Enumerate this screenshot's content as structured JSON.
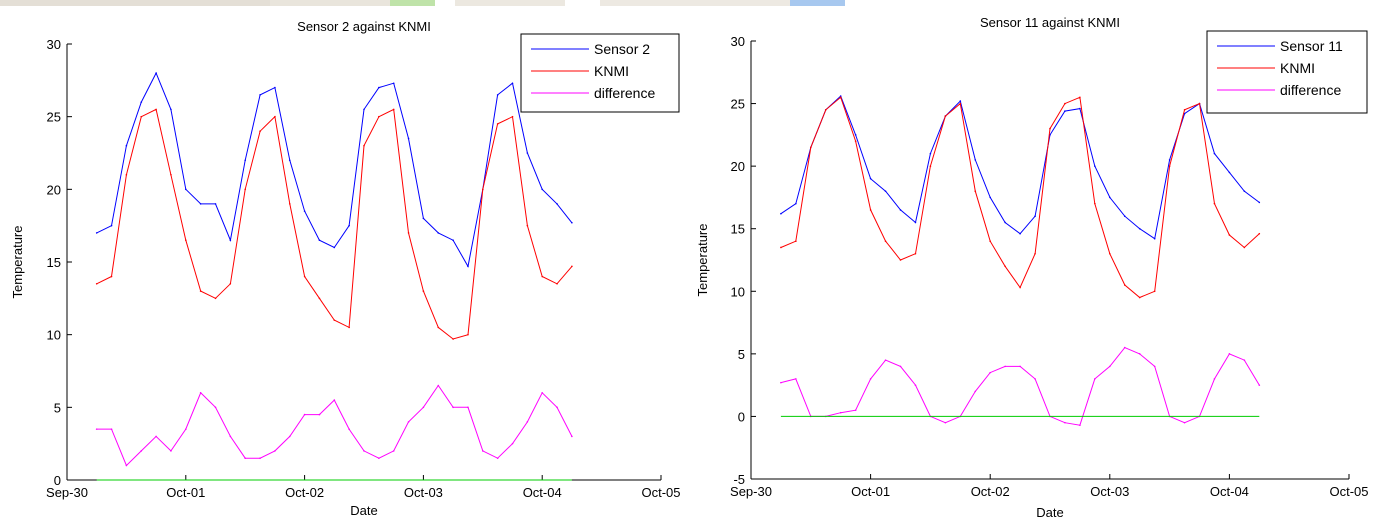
{
  "chart_data": [
    {
      "type": "line",
      "title": "Sensor 2 against KNMI",
      "xlabel": "Date",
      "ylabel": "Temperature",
      "xlim": [
        "2014-09-30 00:00",
        "2014-10-05 00:00"
      ],
      "ylim": [
        0,
        30
      ],
      "xticks": [
        "Sep-30",
        "Oct-01",
        "Oct-02",
        "Oct-03",
        "Oct-04",
        "Oct-05"
      ],
      "yticks": [
        0,
        5,
        10,
        15,
        20,
        25,
        30
      ],
      "legend_position": "top-right",
      "grid": false,
      "series": [
        {
          "name": "Sensor 2",
          "color": "#0000ff",
          "x": [
            "2014-09-30 06:00",
            "2014-09-30 09:00",
            "2014-09-30 12:00",
            "2014-09-30 15:00",
            "2014-09-30 18:00",
            "2014-09-30 21:00",
            "2014-10-01 00:00",
            "2014-10-01 03:00",
            "2014-10-01 06:00",
            "2014-10-01 09:00",
            "2014-10-01 12:00",
            "2014-10-01 15:00",
            "2014-10-01 18:00",
            "2014-10-01 21:00",
            "2014-10-02 00:00",
            "2014-10-02 03:00",
            "2014-10-02 06:00",
            "2014-10-02 09:00",
            "2014-10-02 12:00",
            "2014-10-02 15:00",
            "2014-10-02 18:00",
            "2014-10-02 21:00",
            "2014-10-03 00:00",
            "2014-10-03 03:00",
            "2014-10-03 06:00",
            "2014-10-03 09:00",
            "2014-10-03 12:00",
            "2014-10-03 15:00",
            "2014-10-03 18:00",
            "2014-10-03 21:00",
            "2014-10-04 00:00",
            "2014-10-04 03:00",
            "2014-10-04 06:00"
          ],
          "y": [
            17,
            17.5,
            23,
            26,
            28,
            25.5,
            20,
            19,
            19,
            16.5,
            22,
            26.5,
            27,
            22,
            18.5,
            16.5,
            16,
            17.5,
            25.5,
            27,
            27.3,
            23.5,
            18,
            17,
            16.5,
            14.7,
            20,
            26.5,
            27.3,
            22.5,
            20,
            19,
            17.7
          ]
        },
        {
          "name": "KNMI",
          "color": "#ff0000",
          "x": [
            "2014-09-30 06:00",
            "2014-09-30 09:00",
            "2014-09-30 12:00",
            "2014-09-30 15:00",
            "2014-09-30 18:00",
            "2014-09-30 21:00",
            "2014-10-01 00:00",
            "2014-10-01 03:00",
            "2014-10-01 06:00",
            "2014-10-01 09:00",
            "2014-10-01 12:00",
            "2014-10-01 15:00",
            "2014-10-01 18:00",
            "2014-10-01 21:00",
            "2014-10-02 00:00",
            "2014-10-02 03:00",
            "2014-10-02 06:00",
            "2014-10-02 09:00",
            "2014-10-02 12:00",
            "2014-10-02 15:00",
            "2014-10-02 18:00",
            "2014-10-02 21:00",
            "2014-10-03 00:00",
            "2014-10-03 03:00",
            "2014-10-03 06:00",
            "2014-10-03 09:00",
            "2014-10-03 12:00",
            "2014-10-03 15:00",
            "2014-10-03 18:00",
            "2014-10-03 21:00",
            "2014-10-04 00:00",
            "2014-10-04 03:00",
            "2014-10-04 06:00"
          ],
          "y": [
            13.5,
            14,
            21,
            25,
            25.5,
            21,
            16.5,
            13,
            12.5,
            13.5,
            20,
            24,
            25,
            19,
            14,
            12.5,
            11,
            10.5,
            23,
            25,
            25.5,
            17,
            13,
            10.5,
            9.7,
            10,
            20,
            24.5,
            25,
            17.5,
            14,
            13.5,
            14.7
          ]
        },
        {
          "name": "difference",
          "color": "#ff00ff",
          "x": [
            "2014-09-30 06:00",
            "2014-09-30 09:00",
            "2014-09-30 12:00",
            "2014-09-30 15:00",
            "2014-09-30 18:00",
            "2014-09-30 21:00",
            "2014-10-01 00:00",
            "2014-10-01 03:00",
            "2014-10-01 06:00",
            "2014-10-01 09:00",
            "2014-10-01 12:00",
            "2014-10-01 15:00",
            "2014-10-01 18:00",
            "2014-10-01 21:00",
            "2014-10-02 00:00",
            "2014-10-02 03:00",
            "2014-10-02 06:00",
            "2014-10-02 09:00",
            "2014-10-02 12:00",
            "2014-10-02 15:00",
            "2014-10-02 18:00",
            "2014-10-02 21:00",
            "2014-10-03 00:00",
            "2014-10-03 03:00",
            "2014-10-03 06:00",
            "2014-10-03 09:00",
            "2014-10-03 12:00",
            "2014-10-03 15:00",
            "2014-10-03 18:00",
            "2014-10-03 21:00",
            "2014-10-04 00:00",
            "2014-10-04 03:00",
            "2014-10-04 06:00"
          ],
          "y": [
            3.5,
            3.5,
            1,
            2,
            3,
            2,
            3.5,
            6,
            5,
            3,
            1.5,
            1.5,
            2,
            3,
            4.5,
            4.5,
            5.5,
            3.5,
            2,
            1.5,
            2,
            4,
            5,
            6.5,
            5,
            5,
            2,
            1.5,
            2.5,
            4,
            6,
            5,
            3
          ]
        },
        {
          "name": "",
          "color": "#00cc00",
          "x": [
            "2014-09-30 06:00",
            "2014-10-04 06:00"
          ],
          "y": [
            0,
            0
          ]
        }
      ]
    },
    {
      "type": "line",
      "title": "Sensor 11 against KNMI",
      "xlabel": "Date",
      "ylabel": "Temperature",
      "xlim": [
        "2014-09-30 00:00",
        "2014-10-05 00:00"
      ],
      "ylim": [
        -5,
        30
      ],
      "xticks": [
        "Sep-30",
        "Oct-01",
        "Oct-02",
        "Oct-03",
        "Oct-04",
        "Oct-05"
      ],
      "yticks": [
        -5,
        0,
        5,
        10,
        15,
        20,
        25,
        30
      ],
      "legend_position": "top-right",
      "grid": false,
      "series": [
        {
          "name": "Sensor 11",
          "color": "#0000ff",
          "x": [
            "2014-09-30 06:00",
            "2014-09-30 09:00",
            "2014-09-30 12:00",
            "2014-09-30 15:00",
            "2014-09-30 18:00",
            "2014-09-30 21:00",
            "2014-10-01 00:00",
            "2014-10-01 03:00",
            "2014-10-01 06:00",
            "2014-10-01 09:00",
            "2014-10-01 12:00",
            "2014-10-01 15:00",
            "2014-10-01 18:00",
            "2014-10-01 21:00",
            "2014-10-02 00:00",
            "2014-10-02 03:00",
            "2014-10-02 06:00",
            "2014-10-02 09:00",
            "2014-10-02 12:00",
            "2014-10-02 15:00",
            "2014-10-02 18:00",
            "2014-10-02 21:00",
            "2014-10-03 00:00",
            "2014-10-03 03:00",
            "2014-10-03 06:00",
            "2014-10-03 09:00",
            "2014-10-03 12:00",
            "2014-10-03 15:00",
            "2014-10-03 18:00",
            "2014-10-03 21:00",
            "2014-10-04 00:00",
            "2014-10-04 03:00",
            "2014-10-04 06:00"
          ],
          "y": [
            16.2,
            17,
            21.5,
            24.5,
            25.6,
            22.5,
            19,
            18,
            16.5,
            15.5,
            21,
            24,
            25.2,
            20.5,
            17.5,
            15.5,
            14.6,
            16,
            22.5,
            24.4,
            24.6,
            20,
            17.5,
            16,
            15,
            14.2,
            20.5,
            24.2,
            25,
            21,
            19.5,
            18,
            17.1
          ]
        },
        {
          "name": "KNMI",
          "color": "#ff0000",
          "x": [
            "2014-09-30 06:00",
            "2014-09-30 09:00",
            "2014-09-30 12:00",
            "2014-09-30 15:00",
            "2014-09-30 18:00",
            "2014-09-30 21:00",
            "2014-10-01 00:00",
            "2014-10-01 03:00",
            "2014-10-01 06:00",
            "2014-10-01 09:00",
            "2014-10-01 12:00",
            "2014-10-01 15:00",
            "2014-10-01 18:00",
            "2014-10-01 21:00",
            "2014-10-02 00:00",
            "2014-10-02 03:00",
            "2014-10-02 06:00",
            "2014-10-02 09:00",
            "2014-10-02 12:00",
            "2014-10-02 15:00",
            "2014-10-02 18:00",
            "2014-10-02 21:00",
            "2014-10-03 00:00",
            "2014-10-03 03:00",
            "2014-10-03 06:00",
            "2014-10-03 09:00",
            "2014-10-03 12:00",
            "2014-10-03 15:00",
            "2014-10-03 18:00",
            "2014-10-03 21:00",
            "2014-10-04 00:00",
            "2014-10-04 03:00",
            "2014-10-04 06:00"
          ],
          "y": [
            13.5,
            14,
            21.5,
            24.5,
            25.5,
            22,
            16.5,
            14,
            12.5,
            13,
            20,
            24,
            25,
            18,
            14,
            12,
            10.3,
            13,
            23,
            25,
            25.5,
            17,
            13,
            10.5,
            9.5,
            10,
            20,
            24.5,
            25,
            17,
            14.5,
            13.5,
            14.6
          ]
        },
        {
          "name": "difference",
          "color": "#ff00ff",
          "x": [
            "2014-09-30 06:00",
            "2014-09-30 09:00",
            "2014-09-30 12:00",
            "2014-09-30 15:00",
            "2014-09-30 18:00",
            "2014-09-30 21:00",
            "2014-10-01 00:00",
            "2014-10-01 03:00",
            "2014-10-01 06:00",
            "2014-10-01 09:00",
            "2014-10-01 12:00",
            "2014-10-01 15:00",
            "2014-10-01 18:00",
            "2014-10-01 21:00",
            "2014-10-02 00:00",
            "2014-10-02 03:00",
            "2014-10-02 06:00",
            "2014-10-02 09:00",
            "2014-10-02 12:00",
            "2014-10-02 15:00",
            "2014-10-02 18:00",
            "2014-10-02 21:00",
            "2014-10-03 00:00",
            "2014-10-03 03:00",
            "2014-10-03 06:00",
            "2014-10-03 09:00",
            "2014-10-03 12:00",
            "2014-10-03 15:00",
            "2014-10-03 18:00",
            "2014-10-03 21:00",
            "2014-10-04 00:00",
            "2014-10-04 03:00",
            "2014-10-04 06:00"
          ],
          "y": [
            2.7,
            3,
            0,
            0,
            0.3,
            0.5,
            3,
            4.5,
            4,
            2.5,
            0,
            -0.5,
            0,
            2,
            3.5,
            4,
            4,
            3,
            0,
            -0.5,
            -0.7,
            3,
            4,
            5.5,
            5,
            4,
            0,
            -0.5,
            0,
            3,
            5,
            4.5,
            2.5
          ]
        },
        {
          "name": "",
          "color": "#00cc00",
          "x": [
            "2014-09-30 06:00",
            "2014-10-04 06:00"
          ],
          "y": [
            0,
            0
          ]
        }
      ]
    }
  ],
  "map_strip": {
    "colors": [
      "#e4dfd6",
      "#e9e5dc",
      "#bfe3a9",
      "#ece8e0",
      "#ede9e2",
      "#a7c8ef"
    ]
  }
}
